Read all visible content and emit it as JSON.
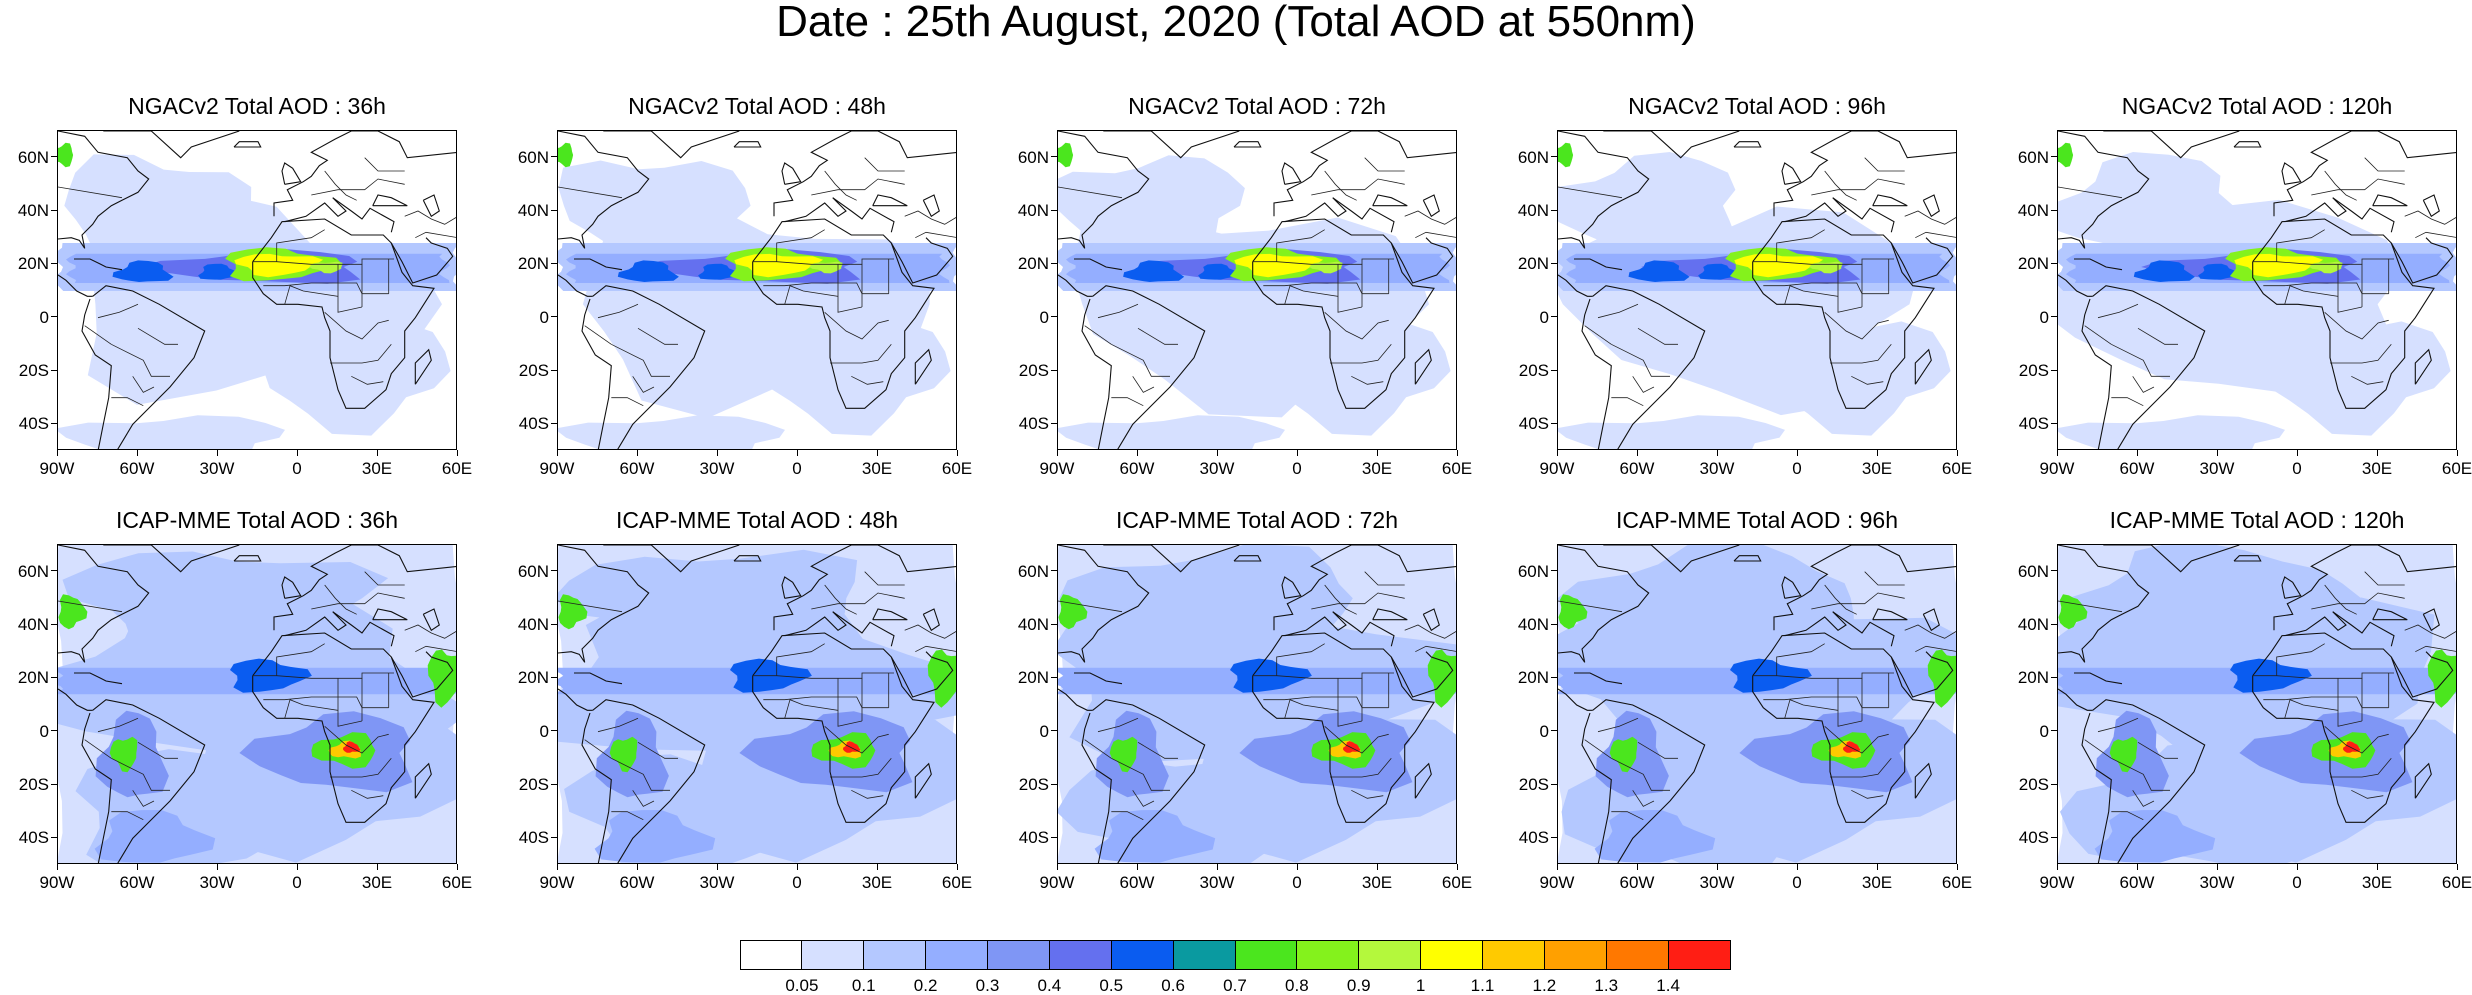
{
  "title": "Date : 25th August, 2020 (Total AOD at 550nm)",
  "panels": [
    {
      "title": "NGACv2 Total AOD : 36h",
      "model": "NGACv2",
      "lead_hours": 36
    },
    {
      "title": "NGACv2 Total AOD : 48h",
      "model": "NGACv2",
      "lead_hours": 48
    },
    {
      "title": "NGACv2 Total AOD : 72h",
      "model": "NGACv2",
      "lead_hours": 72
    },
    {
      "title": "NGACv2 Total AOD : 96h",
      "model": "NGACv2",
      "lead_hours": 96
    },
    {
      "title": "NGACv2 Total AOD : 120h",
      "model": "NGACv2",
      "lead_hours": 120
    },
    {
      "title": "ICAP-MME Total AOD : 36h",
      "model": "ICAP-MME",
      "lead_hours": 36
    },
    {
      "title": "ICAP-MME Total AOD : 48h",
      "model": "ICAP-MME",
      "lead_hours": 48
    },
    {
      "title": "ICAP-MME Total AOD : 72h",
      "model": "ICAP-MME",
      "lead_hours": 72
    },
    {
      "title": "ICAP-MME Total AOD : 96h",
      "model": "ICAP-MME",
      "lead_hours": 96
    },
    {
      "title": "ICAP-MME Total AOD : 120h",
      "model": "ICAP-MME",
      "lead_hours": 120
    }
  ],
  "map_extent": {
    "lon": [
      -90,
      60
    ],
    "lat": [
      -50,
      70
    ]
  },
  "lat_labels": [
    "60N",
    "40N",
    "20N",
    "0",
    "20S",
    "40S"
  ],
  "lon_labels": [
    "90W",
    "60W",
    "30W",
    "0",
    "30E",
    "60E"
  ],
  "colorbar": {
    "labels": [
      "0.05",
      "0.1",
      "0.2",
      "0.3",
      "0.4",
      "0.5",
      "0.6",
      "0.7",
      "0.8",
      "0.9",
      "1",
      "1.1",
      "1.2",
      "1.3",
      "1.4"
    ],
    "colors": [
      "#ffffff",
      "#d6e0ff",
      "#b4c8ff",
      "#94aeff",
      "#7f96f5",
      "#6470ef",
      "#0a5cf0",
      "#0a9aa0",
      "#4be61e",
      "#84f21c",
      "#b4f83c",
      "#ffff00",
      "#ffca00",
      "#ffa000",
      "#ff7800",
      "#ff1e14"
    ]
  }
}
